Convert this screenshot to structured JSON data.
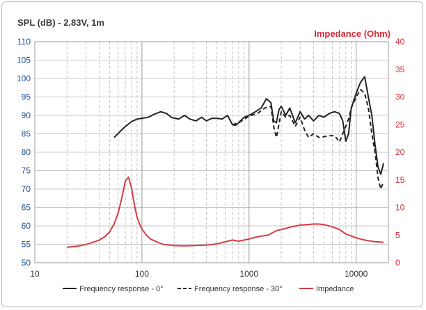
{
  "chart_data": {
    "type": "line",
    "title_left": "SPL (dB) - 2.83V, 1m",
    "title_right": "Impedance (Ohm)",
    "x_scale": "log",
    "xlim": [
      10,
      20000
    ],
    "xticks": [
      "10",
      "100",
      "1000",
      "10000"
    ],
    "ylim_left": [
      50,
      110
    ],
    "yticks_left": [
      "50",
      "55",
      "60",
      "65",
      "70",
      "75",
      "80",
      "85",
      "90",
      "95",
      "100",
      "105",
      "110"
    ],
    "ylim_right": [
      0,
      40
    ],
    "yticks_right": [
      "0",
      "5",
      "10",
      "15",
      "20",
      "25",
      "30",
      "35",
      "40"
    ],
    "grid": true,
    "legend_position": "bottom",
    "series": [
      {
        "name": "Frequency response - 0°",
        "axis": "left",
        "style": "solid",
        "color": "#222222",
        "x": [
          55,
          62,
          70,
          80,
          90,
          100,
          115,
          130,
          150,
          170,
          190,
          220,
          250,
          280,
          320,
          360,
          400,
          450,
          500,
          560,
          630,
          700,
          750,
          800,
          900,
          1000,
          1150,
          1300,
          1450,
          1600,
          1700,
          1800,
          1900,
          2000,
          2200,
          2400,
          2700,
          3000,
          3300,
          3600,
          4000,
          4500,
          5000,
          5600,
          6300,
          7000,
          7500,
          8000,
          8500,
          9000,
          10000,
          11000,
          12000,
          13000,
          14000,
          15000,
          16000,
          17000,
          18000
        ],
        "y": [
          84,
          85.5,
          87,
          88.3,
          89,
          89.2,
          89.5,
          90.3,
          91,
          90.5,
          89.4,
          89,
          90,
          89,
          88.5,
          89.5,
          88.5,
          89.2,
          89.2,
          89,
          90,
          87.5,
          87.3,
          88,
          89.5,
          90,
          91,
          92,
          94.5,
          93.5,
          88.5,
          88,
          91.5,
          92.5,
          90,
          92,
          88,
          91,
          89,
          90,
          88.5,
          90,
          89.5,
          90.5,
          91,
          90.5,
          88.5,
          83,
          85,
          92,
          96,
          99,
          100.5,
          95,
          90,
          82,
          76,
          74,
          77
        ]
      },
      {
        "name": "Frequency response - 30°",
        "axis": "left",
        "style": "dashed",
        "color": "#222222",
        "x": [
          700,
          800,
          1000,
          1200,
          1400,
          1600,
          1700,
          1800,
          1900,
          2000,
          2200,
          2400,
          2700,
          3000,
          3300,
          3600,
          4000,
          4500,
          5000,
          5600,
          6300,
          7000,
          7500,
          8000,
          8500,
          9000,
          10000,
          11000,
          12000,
          13000,
          14000,
          15000,
          16000,
          17000,
          18000
        ],
        "y": [
          87.5,
          88,
          89.8,
          90.5,
          92,
          92.5,
          87,
          84,
          87.5,
          91,
          89.5,
          90,
          87,
          89.5,
          86,
          84,
          85,
          84,
          84.2,
          84.5,
          84.5,
          82.8,
          85,
          87,
          89,
          92,
          95,
          97,
          96,
          92,
          85,
          80,
          73,
          70,
          72
        ]
      },
      {
        "name": "Impedance",
        "axis": "right",
        "style": "solid",
        "color": "#d43c44",
        "x": [
          20,
          25,
          30,
          35,
          40,
          45,
          50,
          55,
          60,
          65,
          70,
          75,
          80,
          85,
          90,
          95,
          100,
          110,
          120,
          140,
          160,
          200,
          250,
          300,
          400,
          500,
          600,
          700,
          800,
          1000,
          1200,
          1500,
          1800,
          2000,
          2500,
          3000,
          3500,
          4000,
          4500,
          5000,
          6000,
          7000,
          8000,
          10000,
          12000,
          15000,
          18000
        ],
        "y": [
          2.8,
          3,
          3.3,
          3.7,
          4.1,
          4.7,
          5.6,
          7,
          9,
          11.8,
          14.8,
          15.5,
          13.5,
          10.5,
          8.3,
          7,
          6.1,
          5,
          4.3,
          3.7,
          3.3,
          3.1,
          3.05,
          3.1,
          3.2,
          3.4,
          3.8,
          4.1,
          3.9,
          4.3,
          4.7,
          5,
          5.8,
          6,
          6.5,
          6.8,
          6.9,
          7,
          7,
          6.9,
          6.5,
          6,
          5.2,
          4.5,
          4.1,
          3.8,
          3.7
        ]
      }
    ]
  }
}
